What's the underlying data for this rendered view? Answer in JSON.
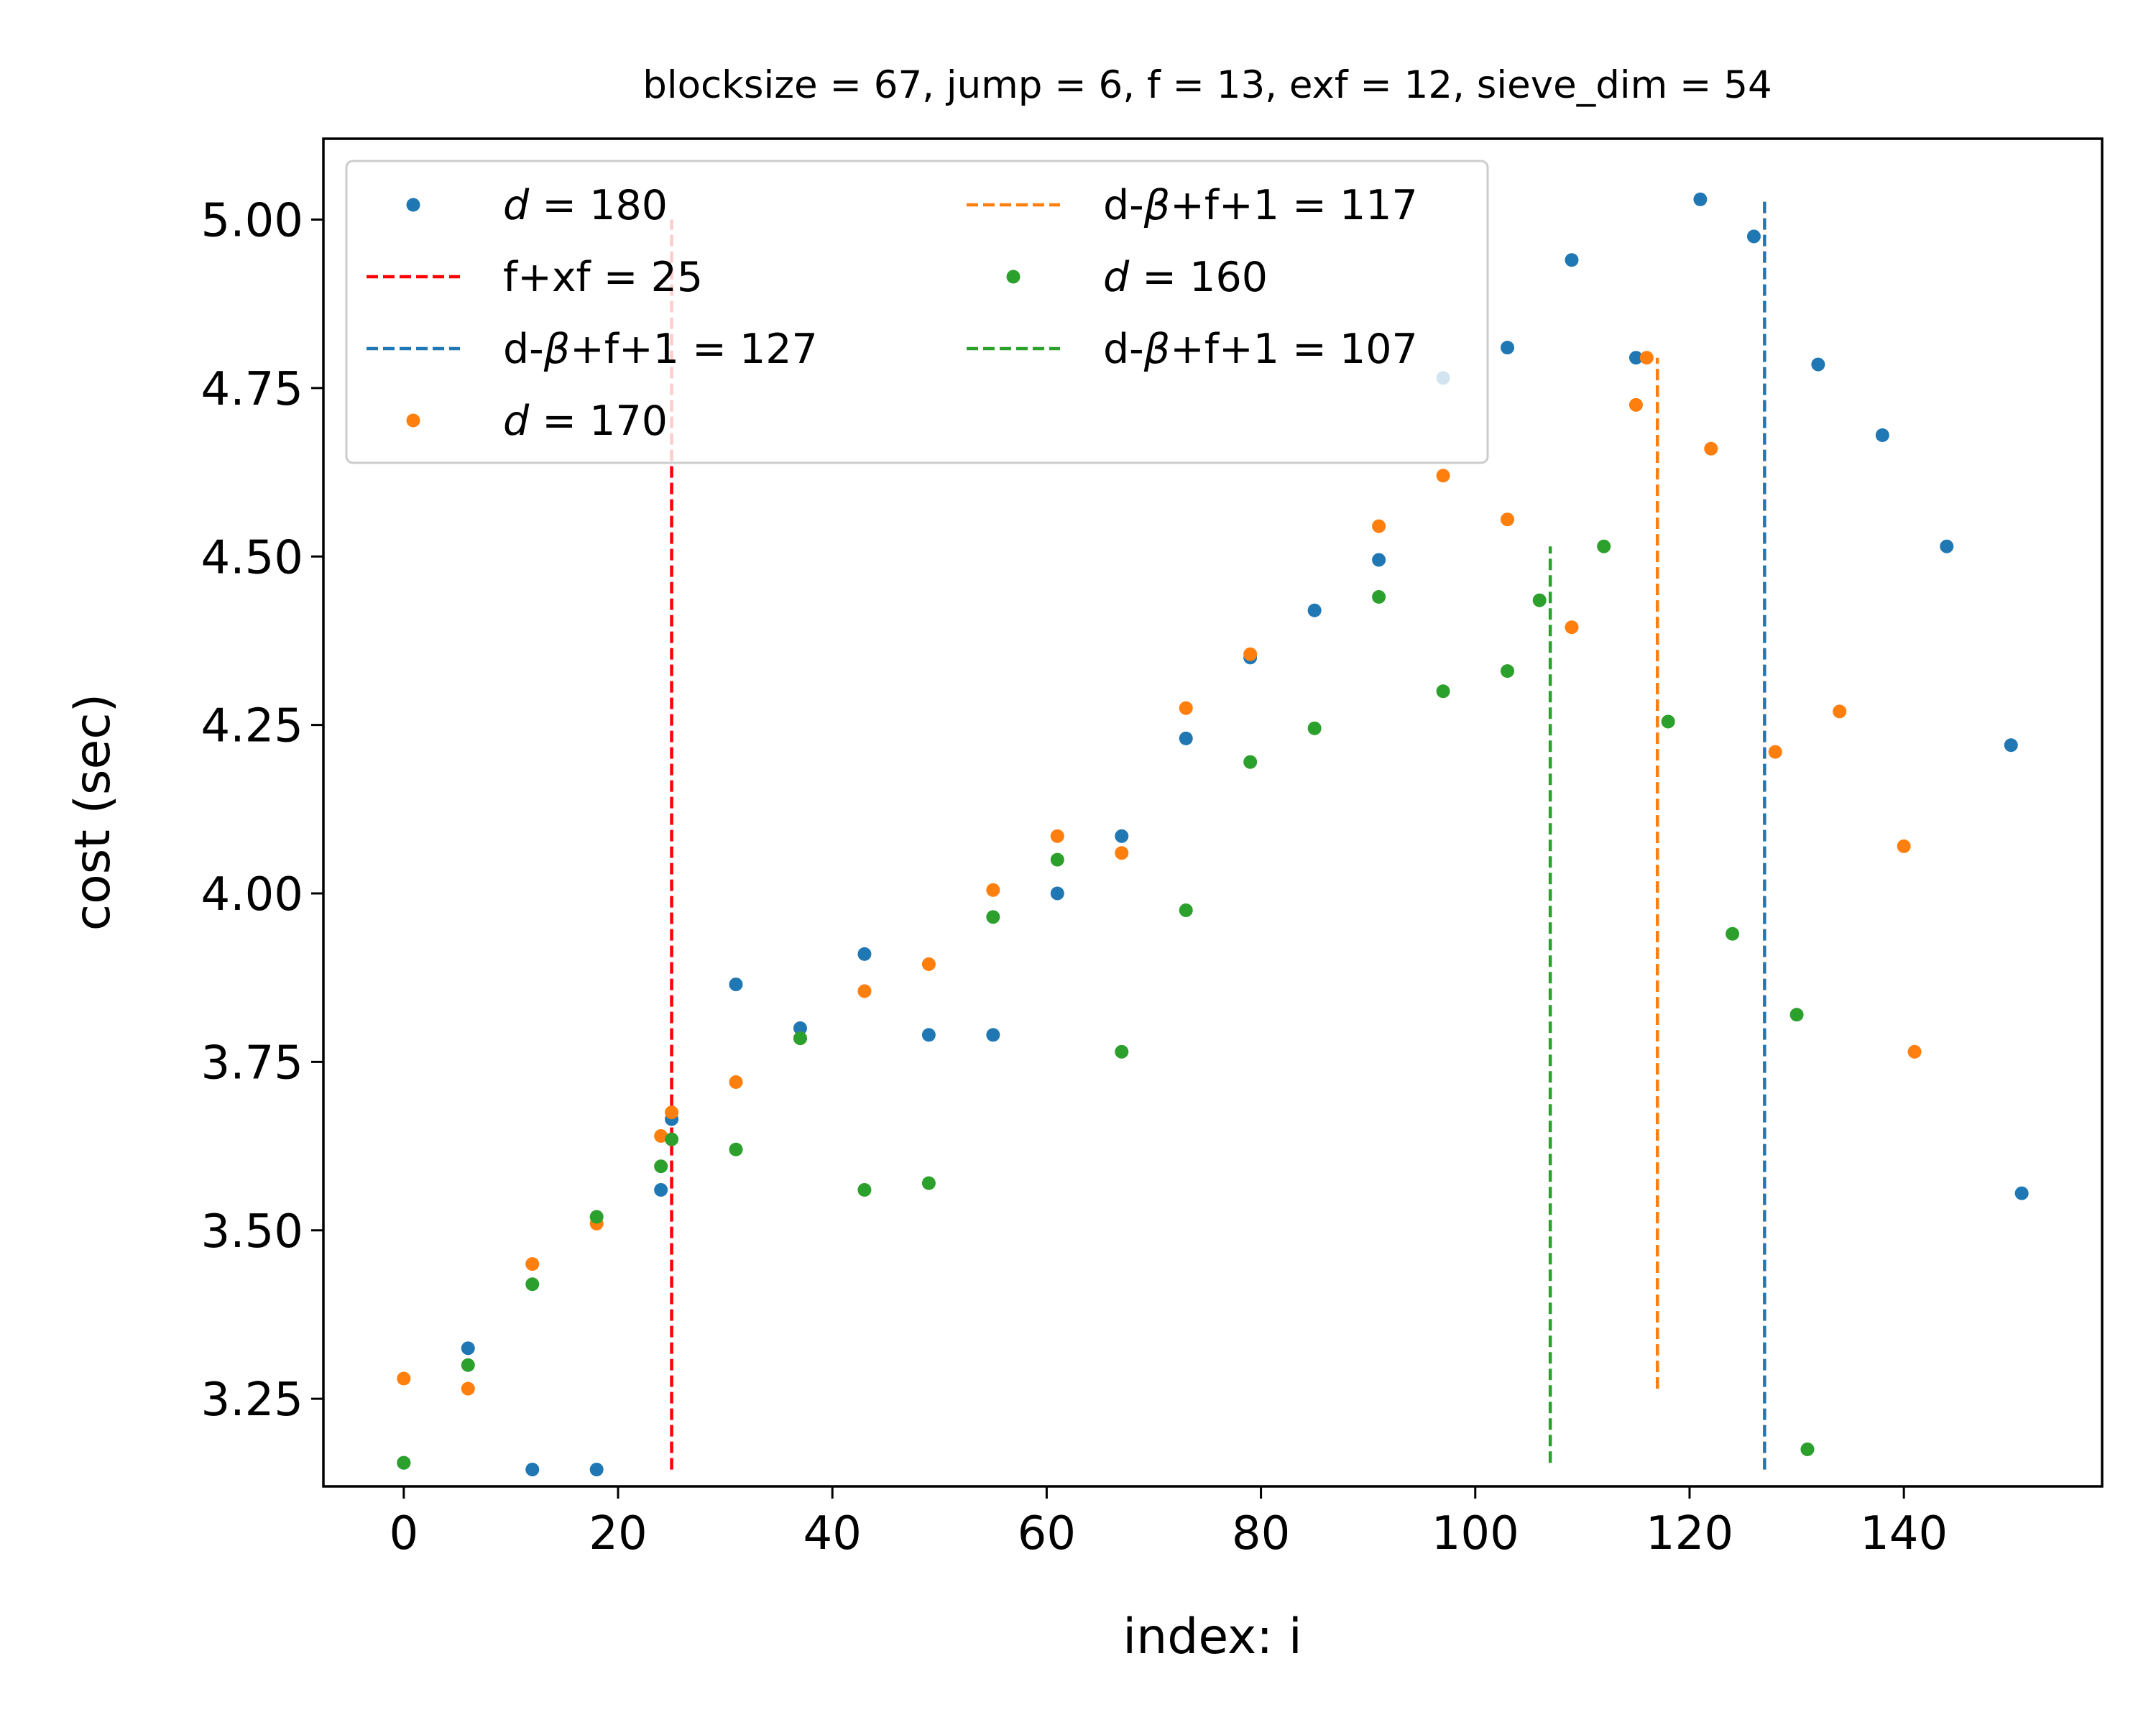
{
  "chart_data": {
    "type": "scatter",
    "title": "blocksize = 67, jump = 6, f = 13, exf = 12, sieve_dim = 54",
    "xlabel": "index: i",
    "ylabel": "cost (sec)",
    "xlim": [
      -7.5,
      158.5
    ],
    "ylim": [
      3.12,
      5.12
    ],
    "x_ticks": [
      0,
      20,
      40,
      60,
      80,
      100,
      120,
      140
    ],
    "x_tick_labels": [
      "0",
      "20",
      "40",
      "60",
      "80",
      "100",
      "120",
      "140"
    ],
    "y_ticks": [
      3.25,
      3.5,
      3.75,
      4.0,
      4.25,
      4.5,
      4.75,
      5.0
    ],
    "y_tick_labels": [
      "3.25",
      "3.50",
      "3.75",
      "4.00",
      "4.25",
      "4.50",
      "4.75",
      "5.00"
    ],
    "grid": false,
    "legend_position": "upper-left",
    "series": [
      {
        "name": "d = 180",
        "name_var": "d",
        "name_rest": " = 180",
        "color": "#1f77b4",
        "points": [
          [
            0,
            3.155
          ],
          [
            6,
            3.325
          ],
          [
            12,
            3.145
          ],
          [
            18,
            3.145
          ],
          [
            24,
            3.56
          ],
          [
            25,
            3.665
          ],
          [
            31,
            3.865
          ],
          [
            37,
            3.8
          ],
          [
            43,
            3.91
          ],
          [
            49,
            3.79
          ],
          [
            55,
            3.79
          ],
          [
            61,
            4.0
          ],
          [
            67,
            4.085
          ],
          [
            73,
            4.23
          ],
          [
            79,
            4.35
          ],
          [
            85,
            4.42
          ],
          [
            91,
            4.495
          ],
          [
            97,
            4.765
          ],
          [
            103,
            4.81
          ],
          [
            109,
            4.94
          ],
          [
            115,
            4.795
          ],
          [
            121,
            5.03
          ],
          [
            126,
            4.975
          ],
          [
            132,
            4.785
          ],
          [
            138,
            4.68
          ],
          [
            144,
            4.515
          ],
          [
            150,
            4.22
          ],
          [
            151,
            3.555
          ]
        ]
      },
      {
        "name": "d = 170",
        "name_var": "d",
        "name_rest": " = 170",
        "color": "#ff7f0e",
        "points": [
          [
            0,
            3.28
          ],
          [
            6,
            3.265
          ],
          [
            12,
            3.45
          ],
          [
            18,
            3.51
          ],
          [
            24,
            3.64
          ],
          [
            25,
            3.675
          ],
          [
            31,
            3.72
          ],
          [
            37,
            3.785
          ],
          [
            43,
            3.855
          ],
          [
            49,
            3.895
          ],
          [
            55,
            4.005
          ],
          [
            61,
            4.085
          ],
          [
            67,
            4.06
          ],
          [
            73,
            4.275
          ],
          [
            79,
            4.355
          ],
          [
            91,
            4.545
          ],
          [
            97,
            4.62
          ],
          [
            103,
            4.555
          ],
          [
            109,
            4.395
          ],
          [
            115,
            4.725
          ],
          [
            116,
            4.795
          ],
          [
            122,
            4.66
          ],
          [
            128,
            4.21
          ],
          [
            134,
            4.27
          ],
          [
            140,
            4.07
          ],
          [
            141,
            3.765
          ]
        ]
      },
      {
        "name": "d = 160",
        "name_var": "d",
        "name_rest": " = 160",
        "color": "#2ca02c",
        "points": [
          [
            0,
            3.155
          ],
          [
            6,
            3.3
          ],
          [
            12,
            3.42
          ],
          [
            18,
            3.52
          ],
          [
            24,
            3.595
          ],
          [
            25,
            3.635
          ],
          [
            31,
            3.62
          ],
          [
            37,
            3.785
          ],
          [
            43,
            3.56
          ],
          [
            49,
            3.57
          ],
          [
            55,
            3.965
          ],
          [
            61,
            4.05
          ],
          [
            67,
            3.765
          ],
          [
            73,
            3.975
          ],
          [
            79,
            4.195
          ],
          [
            85,
            4.245
          ],
          [
            91,
            4.44
          ],
          [
            97,
            4.3
          ],
          [
            103,
            4.33
          ],
          [
            106,
            4.435
          ],
          [
            112,
            4.515
          ],
          [
            118,
            4.255
          ],
          [
            124,
            3.94
          ],
          [
            130,
            3.82
          ],
          [
            131,
            3.175
          ]
        ]
      }
    ],
    "vlines": [
      {
        "name": "f+xf = 25",
        "name_pre": "f+xf",
        "name_rest": " = 25",
        "x": 25,
        "y0": 3.145,
        "y1": 5.0,
        "color": "#ff0000"
      },
      {
        "name": "d-β+f+1 = 127",
        "name_pre": "d-",
        "name_beta": "β",
        "name_rest": "+f+1 = 127",
        "x": 127,
        "y0": 3.145,
        "y1": 5.03,
        "color": "#1f77b4"
      },
      {
        "name": "d-β+f+1 = 117",
        "name_pre": "d-",
        "name_beta": "β",
        "name_rest": "+f+1 = 117",
        "x": 117,
        "y0": 3.265,
        "y1": 4.795,
        "color": "#ff7f0e"
      },
      {
        "name": "d-β+f+1 = 107",
        "name_pre": "d-",
        "name_beta": "β",
        "name_rest": "+f+1 = 107",
        "x": 107,
        "y0": 3.155,
        "y1": 4.515,
        "color": "#2ca02c"
      }
    ],
    "legend_order": [
      {
        "kind": "scatter",
        "ref": 0
      },
      {
        "kind": "vline",
        "ref": 0
      },
      {
        "kind": "vline",
        "ref": 1
      },
      {
        "kind": "scatter",
        "ref": 1
      },
      {
        "kind": "vline",
        "ref": 2
      },
      {
        "kind": "scatter",
        "ref": 2
      },
      {
        "kind": "vline",
        "ref": 3
      }
    ]
  }
}
